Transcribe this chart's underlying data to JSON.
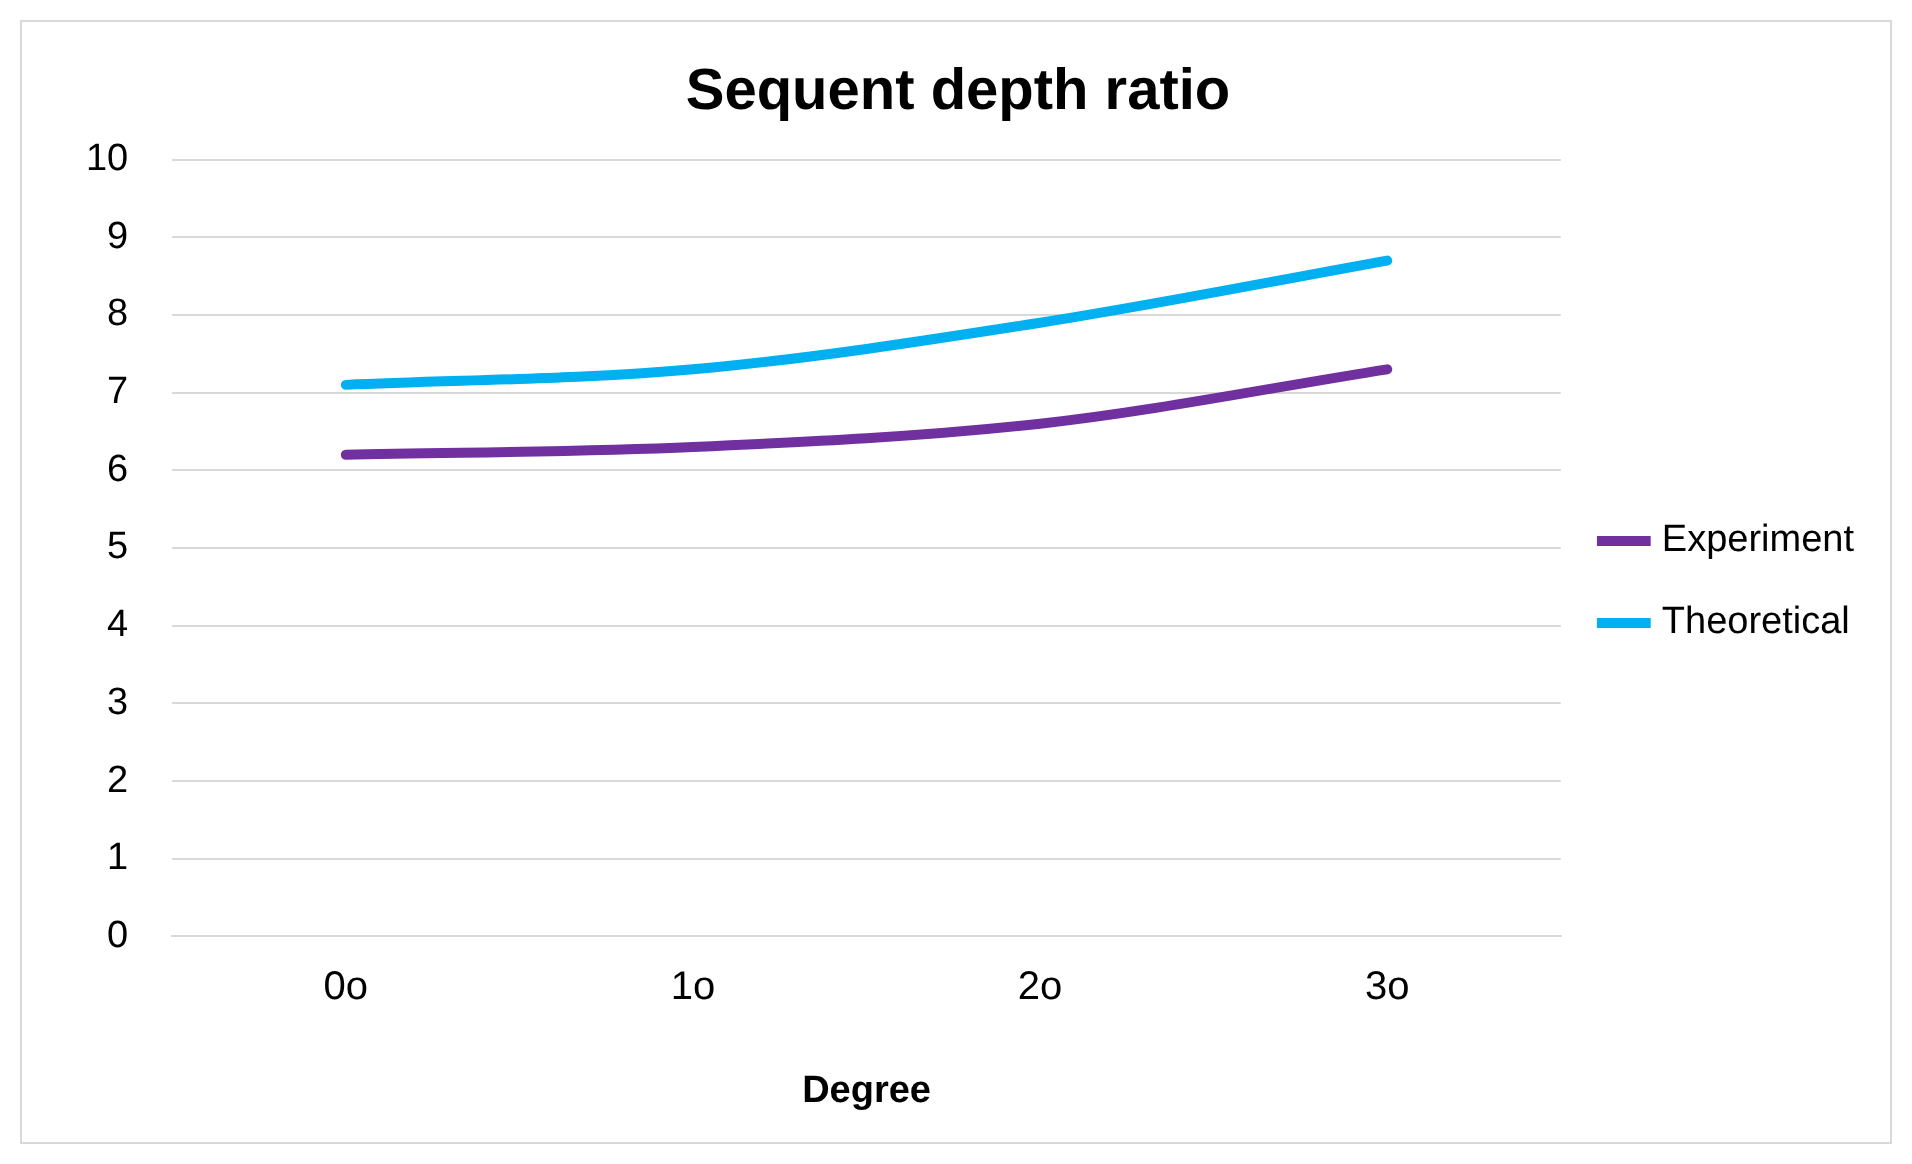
{
  "chart_data": {
    "type": "line",
    "title": "Sequent depth ratio",
    "xlabel": "Degree",
    "categories": [
      "0o",
      "1o",
      "2o",
      "3o"
    ],
    "series": [
      {
        "name": "Experiment",
        "color": "#7030a0",
        "values": [
          6.2,
          6.3,
          6.6,
          7.3
        ]
      },
      {
        "name": "Theoretical",
        "color": "#00b0f0",
        "values": [
          7.1,
          7.3,
          7.9,
          8.7
        ]
      }
    ],
    "ylim": [
      0,
      10
    ],
    "yticks": [
      0,
      1,
      2,
      3,
      4,
      5,
      6,
      7,
      8,
      9,
      10
    ],
    "grid": "y",
    "legend": "right",
    "marker": "none",
    "line_style": "solid"
  }
}
